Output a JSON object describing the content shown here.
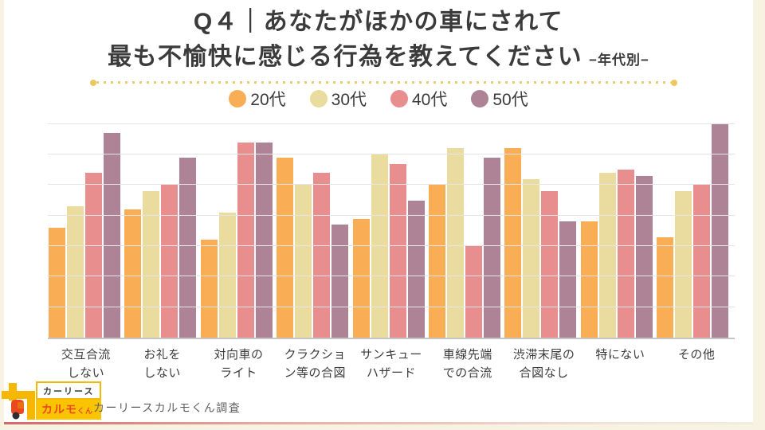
{
  "title": {
    "line1": "Q４｜あなたがほかの車にされて",
    "line2": "最も不愉快に感じる行為を教えてください",
    "tag": "−年代別−"
  },
  "footer": {
    "badge_top": "カーリース",
    "badge_bottom": "カルモ",
    "badge_kun": "くん",
    "caption": "カーリースカルモくん調査"
  },
  "colors": {
    "background_frame": "#F7F2E2",
    "slide_background": "#FFFFFF",
    "divider_dots": "#E9CB74",
    "gridline": "#E5E5E5",
    "baseline": "#C4C4C4",
    "accent_redline_left": "#D4696C",
    "logo_yellow": "#F5B700",
    "logo_red": "#E8491F"
  },
  "chart_data": {
    "type": "bar",
    "title": "Q４｜あなたがほかの車にされて最も不愉快に感じる行為を教えてください（年代別）",
    "xlabel": "",
    "ylabel": "",
    "ylim": [
      0,
      35.5
    ],
    "gridline_step": 5,
    "grid": true,
    "y_axis_labels_visible": false,
    "legend_position": "top",
    "categories": [
      "交互合流\nしない",
      "お礼を\nしない",
      "対向車の\nライト",
      "クラクショ\nン等の合図",
      "サンキュー\nハザード",
      "車線先端\nでの合流",
      "渋滞末尾の\n合図なし",
      "特にない",
      "その他"
    ],
    "series": [
      {
        "name": "20代",
        "color": "#F9AD55",
        "values": [
          18,
          21,
          16,
          29.5,
          19.5,
          25,
          31,
          19,
          16.5
        ]
      },
      {
        "name": "30代",
        "color": "#EADC9E",
        "values": [
          21.5,
          24,
          20.5,
          25,
          30,
          31,
          26,
          27,
          24
        ]
      },
      {
        "name": "40代",
        "color": "#E98E8F",
        "values": [
          27,
          25,
          32,
          27,
          28.5,
          15,
          24,
          27.5,
          25
        ]
      },
      {
        "name": "50代",
        "color": "#AE8396",
        "values": [
          33.5,
          29.5,
          32,
          18.5,
          22.5,
          29.5,
          19,
          26.5,
          35
        ]
      }
    ]
  }
}
